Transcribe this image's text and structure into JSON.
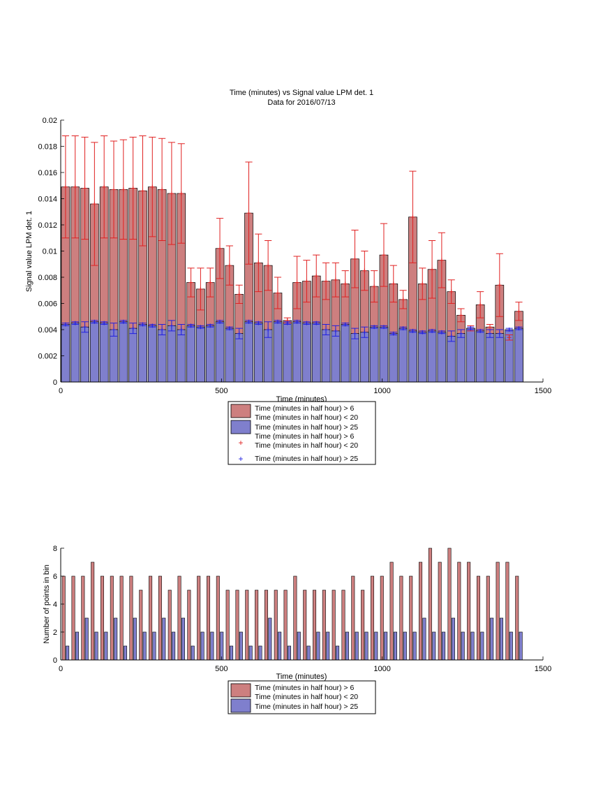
{
  "colors": {
    "red_bar": "#cd7f7f",
    "blue_bar": "#7f7fcd",
    "red_err": "#e02020",
    "blue_err": "#2020e0"
  },
  "chart_data": [
    {
      "type": "bar",
      "title": "Time (minutes) vs Signal value LPM det. 1",
      "subtitle": "Data for 2016/07/13",
      "xlabel": "Time (minutes)",
      "ylabel": "Signal value LPM det. 1",
      "xlim": [
        0,
        1500
      ],
      "ylim": [
        0,
        0.02
      ],
      "xticks": [
        "0",
        "500",
        "1000",
        "1500"
      ],
      "yticks": [
        "0",
        "0.002",
        "0.004",
        "0.006",
        "0.008",
        "0.01",
        "0.012",
        "0.014",
        "0.016",
        "0.018",
        "0.02"
      ],
      "legend_position": "below",
      "legend": [
        {
          "kind": "bar",
          "color": "red",
          "lines": [
            "Time (minutes in half hour) > 6",
            "Time (minutes in half hour) < 20"
          ]
        },
        {
          "kind": "bar",
          "color": "blue",
          "lines": [
            "Time (minutes in half hour) > 25"
          ]
        },
        {
          "kind": "marker",
          "color": "red",
          "lines": [
            "Time (minutes in half hour) > 6",
            "Time (minutes in half hour) < 20"
          ]
        },
        {
          "kind": "marker",
          "color": "blue",
          "lines": [
            "Time (minutes in half hour) > 25"
          ]
        }
      ],
      "x": [
        15,
        45,
        75,
        105,
        135,
        165,
        195,
        225,
        255,
        285,
        315,
        345,
        375,
        405,
        435,
        465,
        495,
        525,
        555,
        585,
        615,
        645,
        675,
        705,
        735,
        765,
        795,
        825,
        855,
        885,
        915,
        945,
        975,
        1005,
        1035,
        1065,
        1095,
        1125,
        1155,
        1185,
        1215,
        1245,
        1275,
        1305,
        1335,
        1365,
        1395,
        1425
      ],
      "series": [
        {
          "values": [
            0.0149,
            0.0149,
            0.0148,
            0.0136,
            0.0149,
            0.0147,
            0.0147,
            0.0148,
            0.0146,
            0.0149,
            0.0147,
            0.0144,
            0.0144,
            0.0076,
            0.0071,
            0.0076,
            0.0102,
            0.0089,
            0.0067,
            0.0129,
            0.0091,
            0.0089,
            0.0068,
            0.0047,
            0.0076,
            0.0077,
            0.0081,
            0.0077,
            0.0078,
            0.0075,
            0.0094,
            0.0085,
            0.0073,
            0.0097,
            0.0075,
            0.0063,
            0.0126,
            0.0075,
            0.0086,
            0.0093,
            0.0069,
            0.0051,
            0.0041,
            0.0059,
            0.0042,
            0.0074,
            0.0034,
            0.0054
          ],
          "errors": [
            0.0039,
            0.0039,
            0.0039,
            0.0047,
            0.0039,
            0.0037,
            0.0038,
            0.0039,
            0.0042,
            0.0038,
            0.0039,
            0.0039,
            0.0038,
            0.0011,
            0.0016,
            0.0011,
            0.0023,
            0.0015,
            0.0007,
            0.0039,
            0.0022,
            0.0019,
            0.0012,
            0.0002,
            0.002,
            0.0016,
            0.0016,
            0.0014,
            0.0013,
            0.001,
            0.0022,
            0.0015,
            0.0012,
            0.0024,
            0.0014,
            0.0007,
            0.0035,
            0.0012,
            0.0022,
            0.0021,
            0.0009,
            0.0005,
            0.0002,
            0.001,
            0.0002,
            0.0024,
            0.0002,
            0.0007
          ]
        },
        {
          "values": [
            0.0044,
            0.0045,
            0.0042,
            0.0046,
            0.0045,
            0.004,
            0.0046,
            0.0041,
            0.0044,
            0.0043,
            0.004,
            0.0043,
            0.004,
            0.0043,
            0.0042,
            0.0043,
            0.0046,
            0.0041,
            0.0037,
            0.0046,
            0.0045,
            0.004,
            0.0046,
            0.0045,
            0.0046,
            0.0045,
            0.0045,
            0.004,
            0.0039,
            0.0044,
            0.0037,
            0.0038,
            0.0042,
            0.0042,
            0.0037,
            0.0041,
            0.0039,
            0.0038,
            0.0039,
            0.0038,
            0.0035,
            0.0037,
            0.0041,
            0.0039,
            0.0037,
            0.0037,
            0.004,
            0.0041
          ],
          "errors": [
            0.0001,
            0.0001,
            0.0004,
            0.0001,
            0.0001,
            0.0005,
            0.0001,
            0.0004,
            0.0001,
            0.0001,
            0.0004,
            0.0004,
            0.0004,
            0.0001,
            0.0001,
            0.0001,
            0.0001,
            0.0001,
            0.0004,
            0.0001,
            0.0001,
            0.0006,
            0.0001,
            0.0001,
            0.0001,
            0.0001,
            0.0001,
            0.0004,
            0.0004,
            0.0001,
            0.0004,
            0.0004,
            0.0001,
            0.0001,
            0.0001,
            0.0001,
            0.0001,
            0.0001,
            0.0001,
            0.0001,
            0.0004,
            0.0003,
            0.0001,
            0.0001,
            0.0003,
            0.0003,
            0.0001,
            0.0001
          ]
        }
      ]
    },
    {
      "type": "bar",
      "xlabel": "Time (minutes)",
      "ylabel": "Number of points in bin",
      "xlim": [
        0,
        1500
      ],
      "ylim": [
        0,
        8
      ],
      "xticks": [
        "0",
        "500",
        "1000",
        "1500"
      ],
      "yticks": [
        "0",
        "2",
        "4",
        "6",
        "8"
      ],
      "legend_position": "below",
      "legend": [
        {
          "kind": "bar",
          "color": "red",
          "lines": [
            "Time (minutes in half hour) > 6",
            "Time (minutes in half hour) < 20"
          ]
        },
        {
          "kind": "bar",
          "color": "blue",
          "lines": [
            "Time (minutes in half hour) > 25"
          ]
        }
      ],
      "x": [
        15,
        45,
        75,
        105,
        135,
        165,
        195,
        225,
        255,
        285,
        315,
        345,
        375,
        405,
        435,
        465,
        495,
        525,
        555,
        585,
        615,
        645,
        675,
        705,
        735,
        765,
        795,
        825,
        855,
        885,
        915,
        945,
        975,
        1005,
        1035,
        1065,
        1095,
        1125,
        1155,
        1185,
        1215,
        1245,
        1275,
        1305,
        1335,
        1365,
        1395,
        1425
      ],
      "series": [
        {
          "values": [
            6,
            6,
            6,
            7,
            6,
            6,
            6,
            6,
            5,
            6,
            6,
            5,
            6,
            5,
            6,
            6,
            6,
            5,
            5,
            5,
            5,
            5,
            5,
            5,
            6,
            5,
            5,
            5,
            5,
            5,
            6,
            5,
            6,
            6,
            7,
            6,
            6,
            7,
            8,
            7,
            8,
            7,
            7,
            6,
            6,
            7,
            7,
            6
          ]
        },
        {
          "values": [
            1,
            2,
            3,
            2,
            2,
            3,
            1,
            3,
            2,
            2,
            3,
            2,
            3,
            1,
            2,
            2,
            2,
            1,
            2,
            1,
            1,
            3,
            2,
            1,
            2,
            1,
            2,
            2,
            1,
            2,
            2,
            2,
            2,
            2,
            2,
            2,
            2,
            3,
            2,
            2,
            3,
            2,
            2,
            2,
            3,
            3,
            2,
            2
          ]
        }
      ]
    }
  ]
}
